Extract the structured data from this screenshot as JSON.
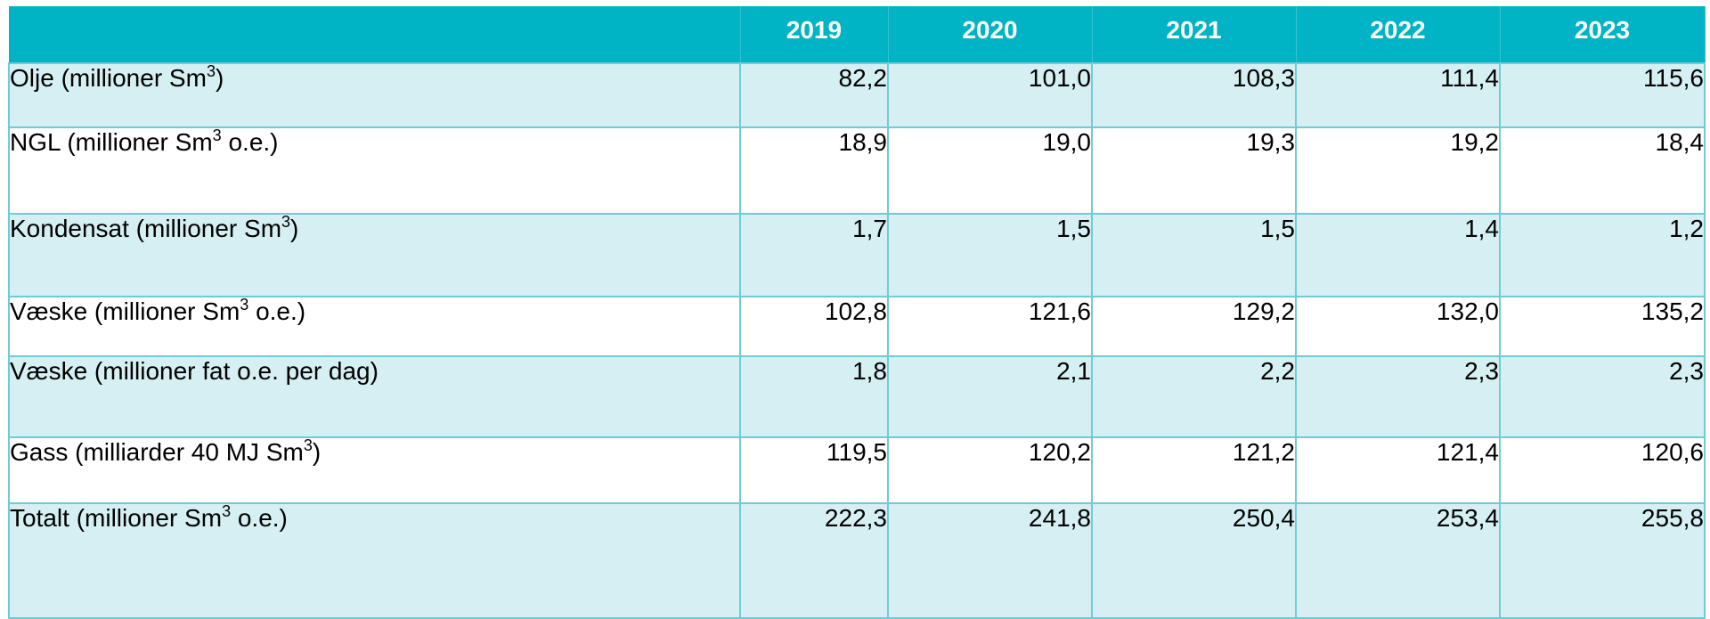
{
  "chart_data": {
    "type": "table",
    "columns": [
      "",
      "2019",
      "2020",
      "2021",
      "2022",
      "2023"
    ],
    "rows": [
      {
        "label_pre": "Olje (millioner Sm",
        "label_sup": "3",
        "label_post": ")",
        "values": [
          "82,2",
          "101,0",
          "108,3",
          "111,4",
          "115,6"
        ]
      },
      {
        "label_pre": "NGL (millioner Sm",
        "label_sup": "3",
        "label_post": " o.e.)",
        "values": [
          "18,9",
          "19,0",
          "19,3",
          "19,2",
          "18,4"
        ]
      },
      {
        "label_pre": "Kondensat (millioner Sm",
        "label_sup": "3",
        "label_post": ")",
        "values": [
          "1,7",
          "1,5",
          "1,5",
          "1,4",
          "1,2"
        ]
      },
      {
        "label_pre": "Væske (millioner Sm",
        "label_sup": "3",
        "label_post": " o.e.)",
        "values": [
          "102,8",
          "121,6",
          "129,2",
          "132,0",
          "135,2"
        ]
      },
      {
        "label_pre": "Væske (millioner fat o.e. per dag)",
        "label_sup": "",
        "label_post": "",
        "values": [
          "1,8",
          "2,1",
          "2,2",
          "2,3",
          "2,3"
        ]
      },
      {
        "label_pre": "Gass (milliarder 40 MJ Sm",
        "label_sup": "3",
        "label_post": ")",
        "values": [
          "119,5",
          "120,2",
          "121,2",
          "121,4",
          "120,6"
        ]
      },
      {
        "label_pre": "Totalt (millioner Sm",
        "label_sup": "3",
        "label_post": " o.e.)",
        "values": [
          "222,3",
          "241,8",
          "250,4",
          "253,4",
          "255,8"
        ]
      }
    ]
  },
  "colors": {
    "header_bg": "#00b4c6",
    "header_text": "#ffffff",
    "band_light": "#d5eff3",
    "band_white": "#ffffff",
    "grid_line": "#6fcbd4"
  }
}
